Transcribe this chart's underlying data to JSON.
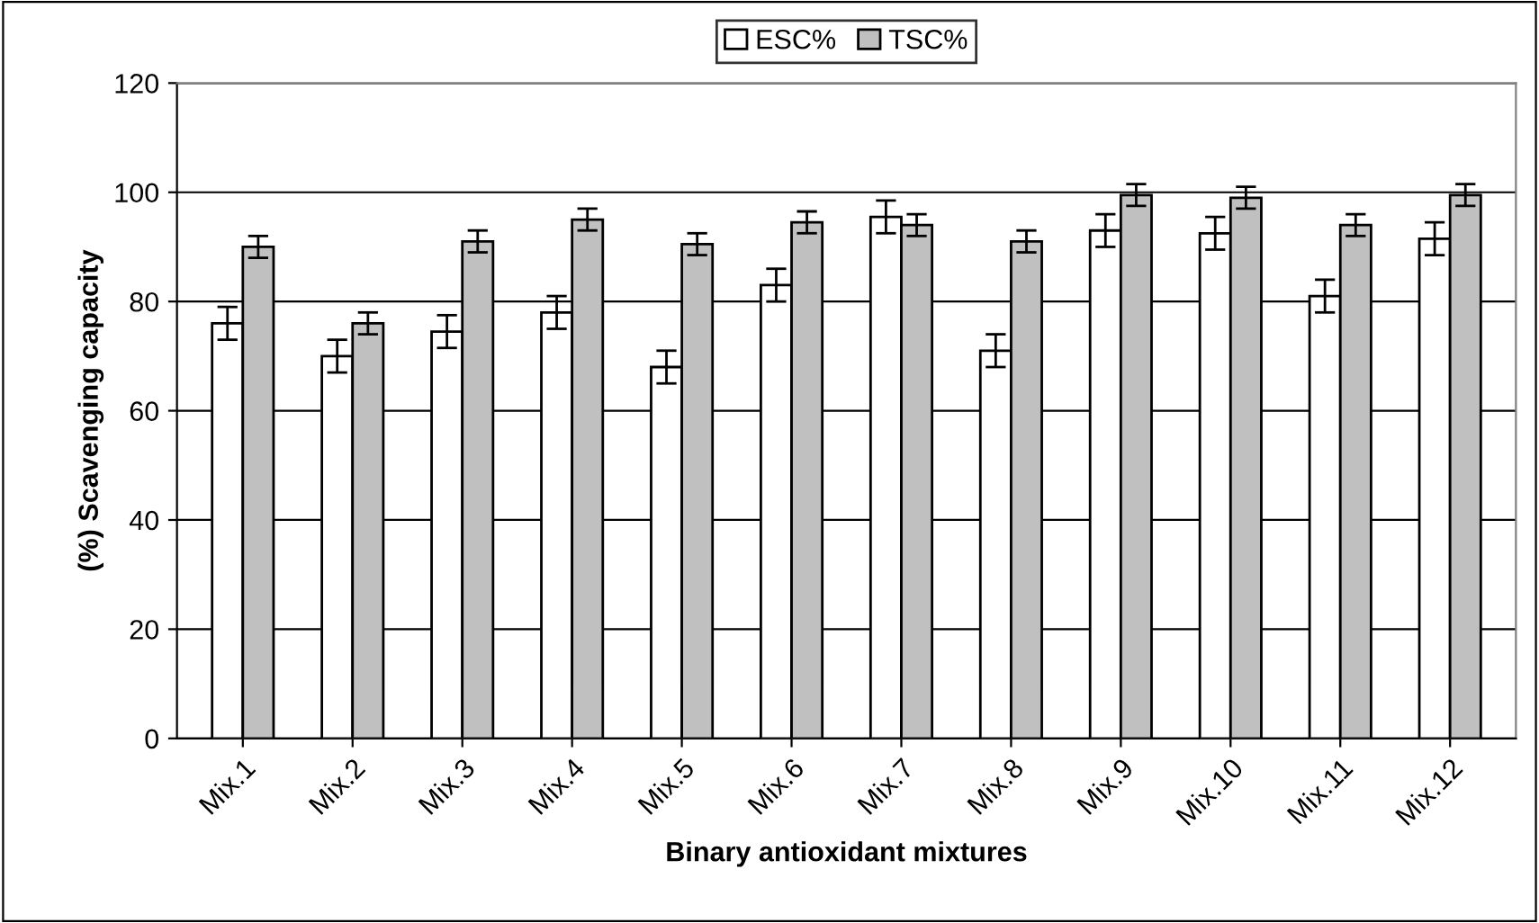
{
  "chart_data": {
    "type": "bar",
    "xlabel": "Binary antioxidant mixtures",
    "ylabel": "(%) Scavenging capacity",
    "categories": [
      "Mix.1",
      "Mix.2",
      "Mix.3",
      "Mix.4",
      "Mix.5",
      "Mix.6",
      "Mix.7",
      "Mix.8",
      "Mix.9",
      "Mix.10",
      "Mix.11",
      "Mix.12"
    ],
    "series": [
      {
        "name": "ESC%",
        "color": "#ffffff",
        "values": [
          76,
          70,
          74.5,
          78,
          68,
          83,
          95.5,
          71,
          93,
          92.5,
          81,
          91.5
        ],
        "errors": [
          3,
          3,
          3,
          3,
          3,
          3,
          3,
          3,
          3,
          3,
          3,
          3
        ]
      },
      {
        "name": "TSC%",
        "color": "#c0c0c0",
        "values": [
          90,
          76,
          91,
          95,
          90.5,
          94.5,
          94,
          91,
          99.5,
          99,
          94,
          99.5
        ],
        "errors": [
          2,
          2,
          2,
          2,
          2,
          2,
          2,
          2,
          2,
          2,
          2,
          2
        ]
      }
    ],
    "ylim": [
      0,
      120
    ],
    "yticks": [
      0,
      20,
      40,
      60,
      80,
      100,
      120
    ],
    "grid": "y",
    "legend": "top"
  }
}
